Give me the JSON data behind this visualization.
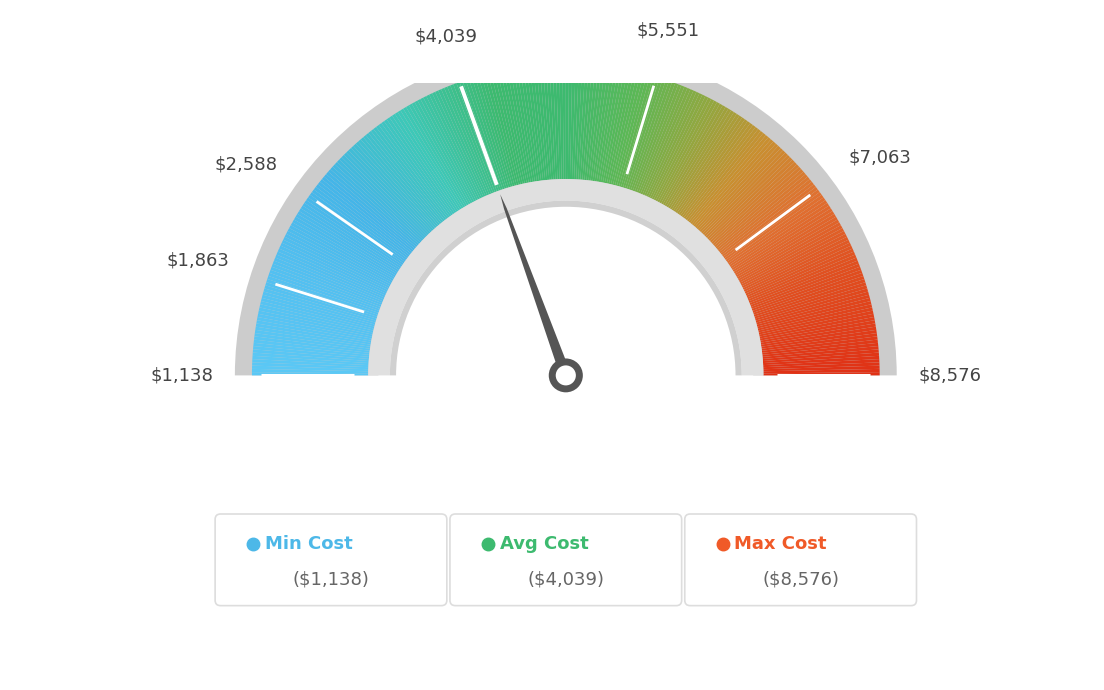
{
  "min_value": 1138,
  "avg_value": 4039,
  "max_value": 8576,
  "tick_labels": [
    "$1,138",
    "$1,863",
    "$2,588",
    "$4,039",
    "$5,551",
    "$7,063",
    "$8,576"
  ],
  "tick_values": [
    1138,
    1863,
    2588,
    4039,
    5551,
    7063,
    8576
  ],
  "legend_items": [
    {
      "label": "Min Cost",
      "value": "($1,138)",
      "color": "#4db8e8"
    },
    {
      "label": "Avg Cost",
      "value": "($4,039)",
      "color": "#3dba6f"
    },
    {
      "label": "Max Cost",
      "value": "($8,576)",
      "color": "#f05a28"
    }
  ],
  "background_color": "#ffffff",
  "color_stops": [
    [
      0.0,
      "#5bc8f5"
    ],
    [
      0.12,
      "#52bff0"
    ],
    [
      0.22,
      "#44b5e8"
    ],
    [
      0.32,
      "#3dc8b8"
    ],
    [
      0.42,
      "#3dba6f"
    ],
    [
      0.5,
      "#3dba6f"
    ],
    [
      0.58,
      "#5db855"
    ],
    [
      0.65,
      "#90a840"
    ],
    [
      0.72,
      "#c89030"
    ],
    [
      0.8,
      "#e07030"
    ],
    [
      0.88,
      "#e05020"
    ],
    [
      1.0,
      "#e03015"
    ]
  ]
}
